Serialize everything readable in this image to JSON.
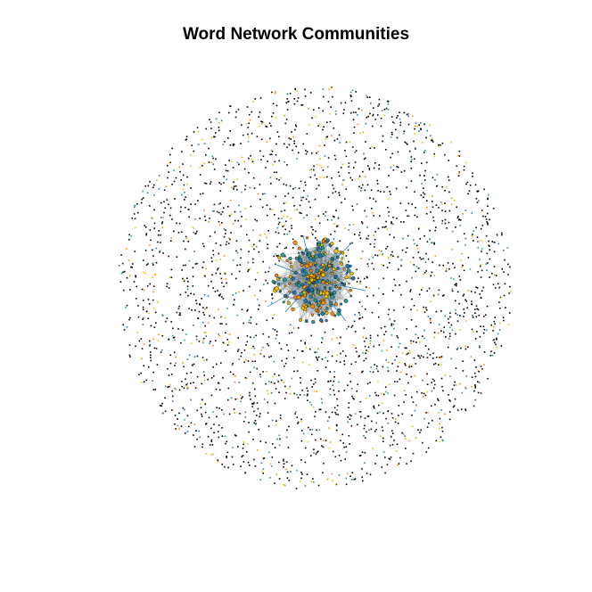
{
  "title": "Word Network Communities",
  "diagram": {
    "type": "network-graph",
    "colors": {
      "node_outline": "#000000",
      "community_blue": "#1f77b4",
      "community_orange": "#ff8c00",
      "community_gold": "#f0c000",
      "community_teal": "#2a9d8f",
      "edge": "#8a8a8a",
      "hull_fill": "#bdbdbd"
    }
  }
}
